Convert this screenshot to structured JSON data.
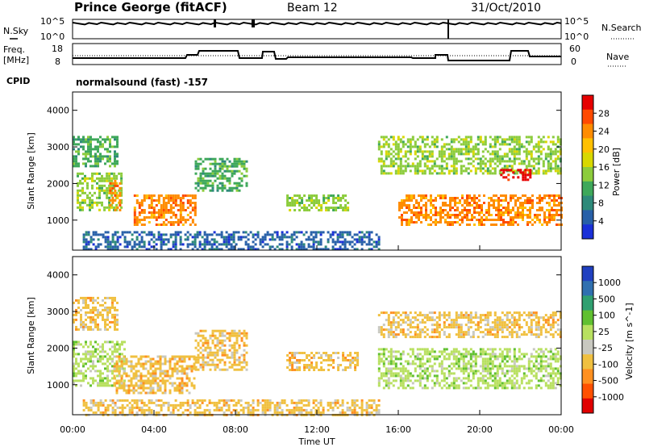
{
  "header": {
    "station": "Prince George (fitACF)",
    "beam": "Beam 12",
    "date": "31/Oct/2010"
  },
  "status_panels": {
    "nsky": {
      "label": "N.Sky",
      "ticks": [
        "10^5",
        "10^0"
      ]
    },
    "nsearch": {
      "label": "N.Search",
      "ticks": [
        "10^5",
        "10^0"
      ]
    },
    "freq": {
      "label_lines": [
        "Freq.",
        "[MHz]"
      ],
      "ticks": [
        "18",
        "8"
      ]
    },
    "nave": {
      "label": "Nave",
      "ticks": [
        "60",
        "0"
      ]
    },
    "cpid": {
      "label": "CPID",
      "text": "normalsound (fast) -157"
    }
  },
  "axes": {
    "x_label": "Time UT",
    "x_ticks": [
      "00:00",
      "04:00",
      "08:00",
      "12:00",
      "16:00",
      "20:00",
      "00:00"
    ],
    "y_label": "Slant Range [km]",
    "y_ticks": [
      "1000",
      "2000",
      "3000",
      "4000"
    ],
    "y_range_km": [
      180,
      4500
    ],
    "x_range_hours": [
      0,
      24
    ]
  },
  "colorbars": {
    "power": {
      "label": "Power [dB]",
      "ticks": [
        "28",
        "24",
        "20",
        "16",
        "12",
        "8",
        "4"
      ],
      "colors": [
        "#e60000",
        "#ff4a00",
        "#ff8c00",
        "#ffc000",
        "#d8d800",
        "#8ccc3c",
        "#3ea85a",
        "#2e8a7a",
        "#2860a8",
        "#1a30d8"
      ]
    },
    "velocity": {
      "label": "Velocity [m s^-1]",
      "ticks": [
        "1000",
        "500",
        "100",
        "25",
        "-25",
        "-100",
        "-500",
        "-1000"
      ],
      "colors": [
        "#2040c0",
        "#3070b0",
        "#30a070",
        "#60c030",
        "#b8e060",
        "#c8c8c0",
        "#f0c040",
        "#ff9020",
        "#ff5000",
        "#e00000"
      ]
    }
  },
  "chart_data": [
    {
      "type": "heatmap",
      "name": "power",
      "x_unit": "hours UT",
      "y_unit": "km",
      "regions": [
        {
          "t0": 0.0,
          "t1": 2.2,
          "r0": 2500,
          "r1": 3300,
          "value": "12"
        },
        {
          "t0": 0.2,
          "t1": 2.4,
          "r0": 1300,
          "r1": 2300,
          "value": "16"
        },
        {
          "t0": 1.8,
          "t1": 2.3,
          "r0": 1300,
          "r1": 2100,
          "value": "24"
        },
        {
          "t0": 3.0,
          "t1": 6.0,
          "r0": 900,
          "r1": 1700,
          "value": "24"
        },
        {
          "t0": 6.0,
          "t1": 8.5,
          "r0": 1800,
          "r1": 2700,
          "value": "12"
        },
        {
          "t0": 10.5,
          "t1": 13.5,
          "r0": 1300,
          "r1": 1700,
          "value": "16"
        },
        {
          "t0": 15.0,
          "t1": 24.0,
          "r0": 2300,
          "r1": 3300,
          "value": "16"
        },
        {
          "t0": 16.0,
          "t1": 24.0,
          "r0": 900,
          "r1": 1700,
          "value": "24"
        },
        {
          "t0": 21.0,
          "t1": 22.5,
          "r0": 2100,
          "r1": 2400,
          "value": "28"
        },
        {
          "t0": 0.5,
          "t1": 15.0,
          "r0": 200,
          "r1": 700,
          "value": "8"
        }
      ]
    },
    {
      "type": "heatmap",
      "name": "velocity",
      "x_unit": "hours UT",
      "y_unit": "km",
      "regions": [
        {
          "t0": 0.0,
          "t1": 2.2,
          "r0": 2500,
          "r1": 3400,
          "value": "-100"
        },
        {
          "t0": 0.0,
          "t1": 2.5,
          "r0": 1000,
          "r1": 2200,
          "value": "25"
        },
        {
          "t0": 2.0,
          "t1": 6.0,
          "r0": 800,
          "r1": 1800,
          "value": "-100"
        },
        {
          "t0": 6.0,
          "t1": 8.5,
          "r0": 1400,
          "r1": 2500,
          "value": "-100"
        },
        {
          "t0": 10.5,
          "t1": 14.0,
          "r0": 1400,
          "r1": 1900,
          "value": "-100"
        },
        {
          "t0": 15.0,
          "t1": 24.0,
          "r0": 2300,
          "r1": 3000,
          "value": "-100"
        },
        {
          "t0": 15.0,
          "t1": 24.0,
          "r0": 900,
          "r1": 2000,
          "value": "25"
        },
        {
          "t0": 0.5,
          "t1": 15.0,
          "r0": 200,
          "r1": 600,
          "value": "-100"
        }
      ]
    }
  ]
}
